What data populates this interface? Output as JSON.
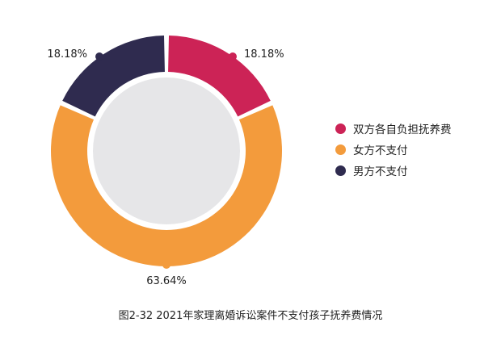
{
  "colors": {
    "both_self": "#cc2356",
    "female_not_pay": "#f39b3c",
    "male_not_pay": "#2f2b4f",
    "inner_disc": "#e6e6e8"
  },
  "chart_data": {
    "type": "pie",
    "style": "donut",
    "title": "图2-32   2021年家理离婚诉讼案件不支付孩子抚养费情况",
    "categories": [
      "双方各自负担抚养费",
      "女方不支付",
      "男方不支付"
    ],
    "values": [
      18.18,
      63.64,
      18.18
    ],
    "data_labels": [
      "18.18%",
      "63.64%",
      "18.18%"
    ],
    "legend_position": "right"
  }
}
